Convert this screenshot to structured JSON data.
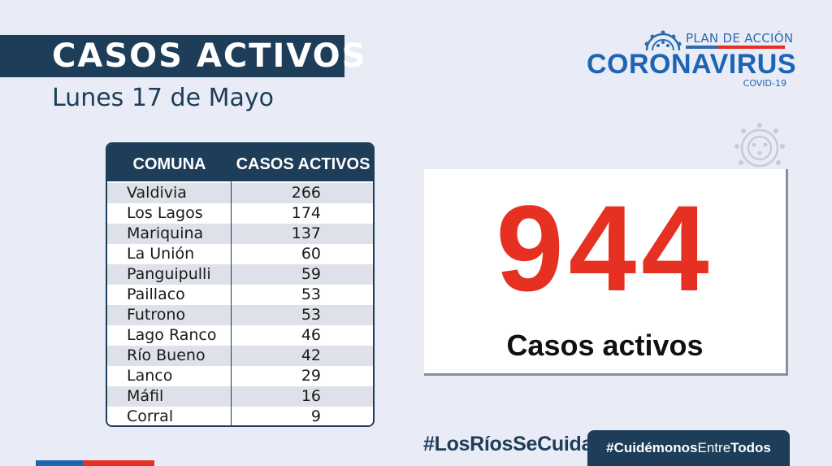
{
  "header": {
    "title": "CASOS ACTIVOS",
    "date": "Lunes 17 de Mayo"
  },
  "logo": {
    "plan": "PLAN DE ACCIÓN",
    "name": "CORONAVIRUS",
    "sub": "COVID-19",
    "icon": "coronavirus-icon"
  },
  "table": {
    "headers": [
      "COMUNA",
      "CASOS ACTIVOS"
    ],
    "rows": [
      {
        "comuna": "Valdivia",
        "casos": "266"
      },
      {
        "comuna": "Los Lagos",
        "casos": "174"
      },
      {
        "comuna": "Mariquina",
        "casos": "137"
      },
      {
        "comuna": "La Unión",
        "casos": "60"
      },
      {
        "comuna": "Panguipulli",
        "casos": "59"
      },
      {
        "comuna": "Paillaco",
        "casos": "53"
      },
      {
        "comuna": "Futrono",
        "casos": "53"
      },
      {
        "comuna": "Lago Ranco",
        "casos": "46"
      },
      {
        "comuna": "Río Bueno",
        "casos": "42"
      },
      {
        "comuna": "Lanco",
        "casos": "29"
      },
      {
        "comuna": "Máfil",
        "casos": "16"
      },
      {
        "comuna": "Corral",
        "casos": "9"
      }
    ]
  },
  "total": {
    "value": "944",
    "label": "Casos activos"
  },
  "footer": {
    "hashtag_1": "#LosRíosSeCuida",
    "hashtag_2_a": "#Cuidémonos",
    "hashtag_2_b": "Entre",
    "hashtag_2_c": "Todos"
  },
  "colors": {
    "navy": "#1d3d58",
    "red": "#e63122",
    "blue": "#1e64b4",
    "background": "#e9ecf6"
  }
}
